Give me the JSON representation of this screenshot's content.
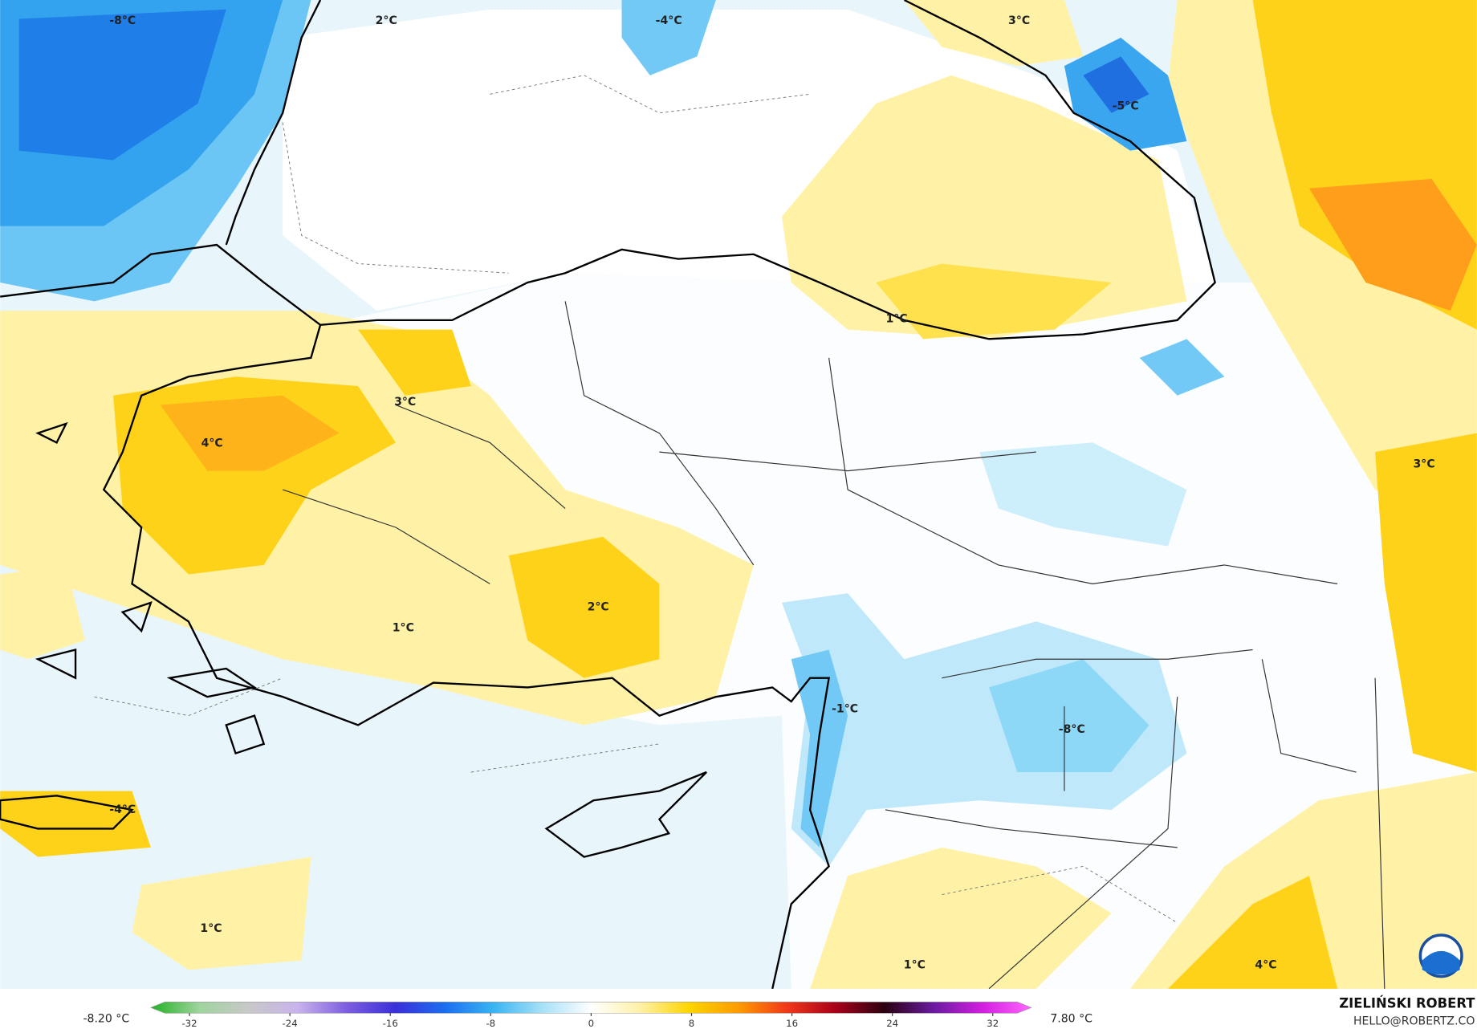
{
  "map": {
    "labels": [
      "-8°C",
      "2°C",
      "-4°C",
      "3°C",
      "-5°C",
      "1°C",
      "3°C",
      "4°C",
      "3°C",
      "2°C",
      "1°C",
      "-1°C",
      "-8°C",
      "-4°C",
      "1°C",
      "1°C",
      "4°C"
    ]
  },
  "colorbar": {
    "min_label": "-8.20 °C",
    "max_label": "7.80 °C",
    "ticks": [
      -32,
      -24,
      -16,
      -8,
      0,
      8,
      16,
      24,
      32
    ],
    "colors": [
      "#22b222",
      "#9fd49f",
      "#c8c8c8",
      "#c9b3ec",
      "#7d5ee0",
      "#3a2fd9",
      "#1c6df0",
      "#39b4f2",
      "#a6e1f7",
      "#ffffff",
      "#fff1a8",
      "#ffd500",
      "#ff9c00",
      "#f0381a",
      "#a8001a",
      "#2a0010",
      "#6a1aa0",
      "#d21fe0",
      "#ff66ff"
    ]
  },
  "credit": {
    "name": "ZIELIŃSKI ROBERT",
    "email": "HELLO@ROBERTZ.CO"
  }
}
